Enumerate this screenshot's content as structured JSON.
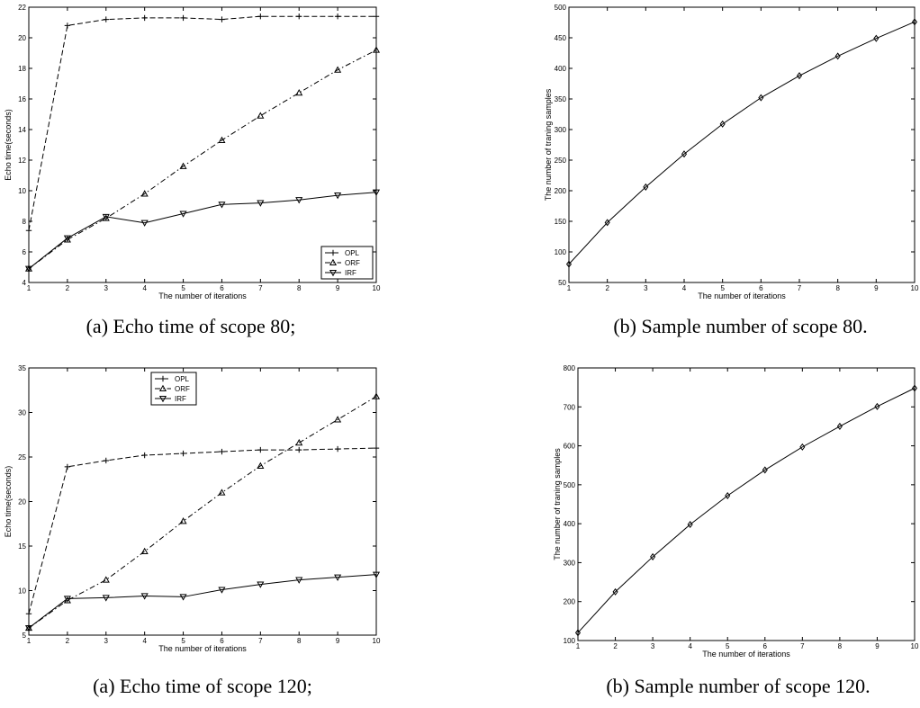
{
  "chart_data": [
    {
      "type": "line",
      "caption": "(a) Echo time of scope 80;",
      "xlabel": "The number of iterations",
      "ylabel": "Echo time(seconds)",
      "xlim": [
        1,
        10
      ],
      "ylim": [
        4,
        22
      ],
      "xticks": [
        1,
        2,
        3,
        4,
        5,
        6,
        7,
        8,
        9,
        10
      ],
      "yticks": [
        4,
        6,
        8,
        10,
        12,
        14,
        16,
        18,
        20,
        22
      ],
      "legend_position": "bottom-right",
      "x": [
        1,
        2,
        3,
        4,
        5,
        6,
        7,
        8,
        9,
        10
      ],
      "series": [
        {
          "name": "OPL",
          "marker": "plus",
          "dash": "dashed",
          "values": [
            7.4,
            20.8,
            21.2,
            21.3,
            21.3,
            21.2,
            21.4,
            21.4,
            21.4,
            21.4
          ]
        },
        {
          "name": "ORF",
          "marker": "triangle-up",
          "dash": "dashdot",
          "values": [
            4.9,
            6.8,
            8.2,
            9.8,
            11.6,
            13.3,
            14.9,
            16.4,
            17.9,
            19.2
          ]
        },
        {
          "name": "IRF",
          "marker": "triangle-down",
          "dash": "solid",
          "values": [
            4.9,
            6.9,
            8.3,
            7.9,
            8.5,
            9.1,
            9.2,
            9.4,
            9.7,
            9.9
          ]
        }
      ]
    },
    {
      "type": "line",
      "caption": "(b) Sample number of scope 80.",
      "xlabel": "The number of iterations",
      "ylabel": "The number of traning samples",
      "xlim": [
        1,
        10
      ],
      "ylim": [
        50,
        500
      ],
      "xticks": [
        1,
        2,
        3,
        4,
        5,
        6,
        7,
        8,
        9,
        10
      ],
      "yticks": [
        50,
        100,
        150,
        200,
        250,
        300,
        350,
        400,
        450,
        500
      ],
      "legend_position": "none",
      "x": [
        1,
        2,
        3,
        4,
        5,
        6,
        7,
        8,
        9,
        10
      ],
      "series": [
        {
          "name": "",
          "marker": "diamond",
          "dash": "solid",
          "values": [
            80,
            148,
            206,
            260,
            309,
            352,
            388,
            420,
            449,
            476
          ]
        }
      ]
    },
    {
      "type": "line",
      "caption": "(a) Echo time of scope 120;",
      "xlabel": "The number of iterations",
      "ylabel": "Echo time(seconds)",
      "xlim": [
        1,
        10
      ],
      "ylim": [
        5,
        35
      ],
      "xticks": [
        1,
        2,
        3,
        4,
        5,
        6,
        7,
        8,
        9,
        10
      ],
      "yticks": [
        5,
        10,
        15,
        20,
        25,
        30,
        35
      ],
      "legend_position": "top-center",
      "x": [
        1,
        2,
        3,
        4,
        5,
        6,
        7,
        8,
        9,
        10
      ],
      "series": [
        {
          "name": "OPL",
          "marker": "plus",
          "dash": "dashed",
          "values": [
            7.4,
            23.9,
            24.6,
            25.2,
            25.4,
            25.6,
            25.8,
            25.8,
            25.9,
            26.0
          ]
        },
        {
          "name": "ORF",
          "marker": "triangle-up",
          "dash": "dashdot",
          "values": [
            5.8,
            8.9,
            11.2,
            14.4,
            17.8,
            21.0,
            24.0,
            26.6,
            29.2,
            31.8
          ]
        },
        {
          "name": "IRF",
          "marker": "triangle-down",
          "dash": "solid",
          "values": [
            5.8,
            9.1,
            9.2,
            9.4,
            9.3,
            10.1,
            10.7,
            11.2,
            11.5,
            11.8
          ]
        }
      ]
    },
    {
      "type": "line",
      "caption": "(b) Sample number of scope 120.",
      "xlabel": "The number of iterations",
      "ylabel": "The number of traning samples",
      "xlim": [
        1,
        10
      ],
      "ylim": [
        100,
        800
      ],
      "xticks": [
        1,
        2,
        3,
        4,
        5,
        6,
        7,
        8,
        9,
        10
      ],
      "yticks": [
        100,
        200,
        300,
        400,
        500,
        600,
        700,
        800
      ],
      "legend_position": "none",
      "x": [
        1,
        2,
        3,
        4,
        5,
        6,
        7,
        8,
        9,
        10
      ],
      "series": [
        {
          "name": "",
          "marker": "diamond",
          "dash": "solid",
          "values": [
            120,
            225,
            315,
            398,
            472,
            538,
            597,
            650,
            701,
            748
          ]
        }
      ]
    }
  ]
}
